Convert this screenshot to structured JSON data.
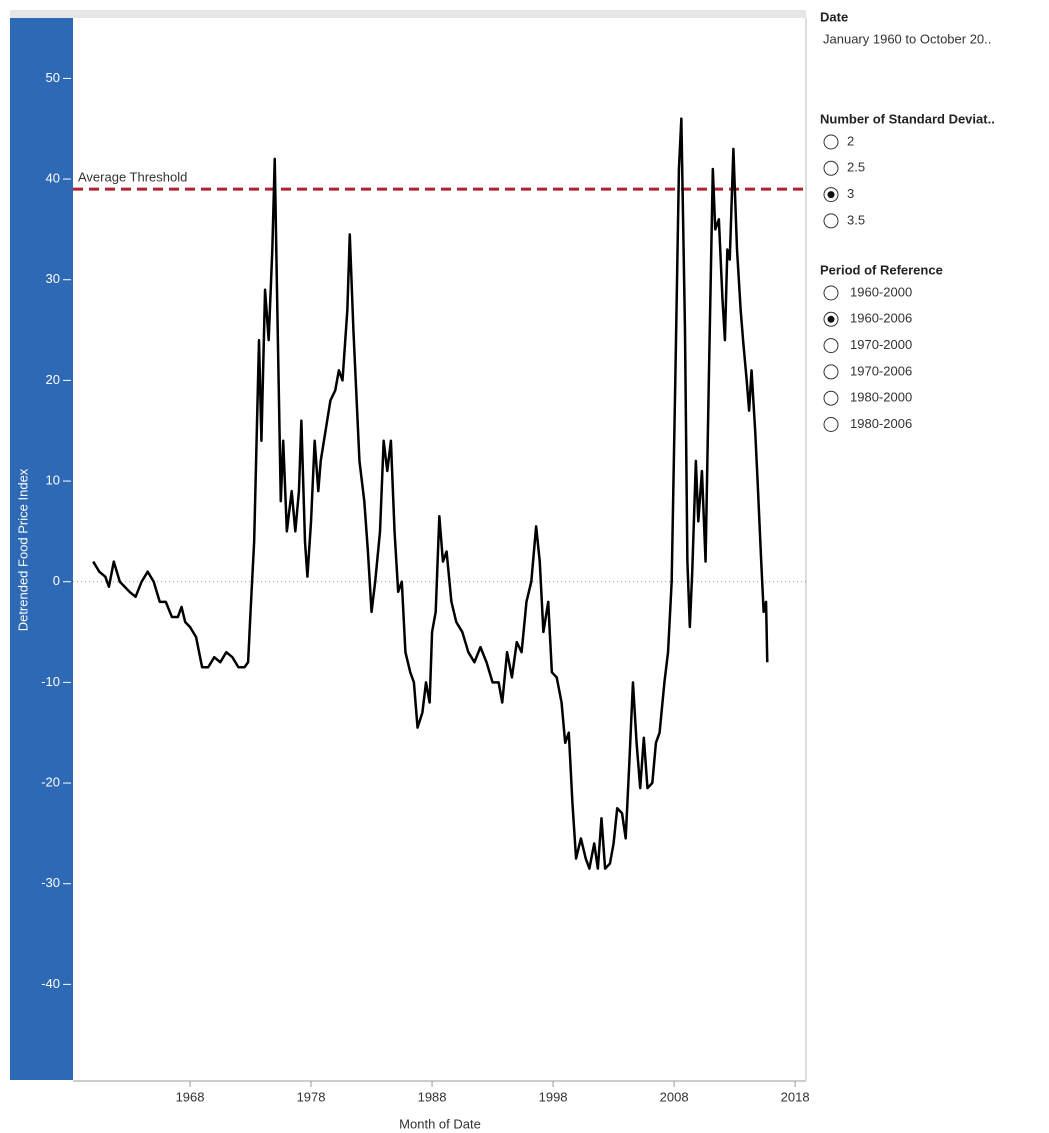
{
  "chart_data": {
    "type": "line",
    "x_label": "Month of Date",
    "y_label": "Detrended Food Price Index",
    "color": "#000000",
    "x": [
      1960.0,
      1960.5,
      1961.0,
      1961.3,
      1961.7,
      1962.2,
      1963.0,
      1963.5,
      1964.0,
      1964.5,
      1965.0,
      1965.5,
      1966.0,
      1966.5,
      1967.0,
      1967.3,
      1967.6,
      1968.0,
      1968.5,
      1969.0,
      1969.5,
      1970.0,
      1970.5,
      1971.0,
      1971.5,
      1972.0,
      1972.5,
      1972.8,
      1973.0,
      1973.3,
      1973.7,
      1973.9,
      1974.2,
      1974.5,
      1974.8,
      1975.0,
      1975.2,
      1975.5,
      1975.7,
      1976.0,
      1976.4,
      1976.7,
      1977.0,
      1977.2,
      1977.5,
      1977.7,
      1978.0,
      1978.3,
      1978.6,
      1978.8,
      1979.2,
      1979.6,
      1980.0,
      1980.3,
      1980.6,
      1981.0,
      1981.2,
      1981.5,
      1982.0,
      1982.4,
      1982.7,
      1983.0,
      1983.3,
      1983.7,
      1984.0,
      1984.3,
      1984.6,
      1984.9,
      1985.2,
      1985.5,
      1985.8,
      1986.2,
      1986.5,
      1986.8,
      1987.2,
      1987.5,
      1987.8,
      1988.0,
      1988.3,
      1988.6,
      1988.9,
      1989.2,
      1989.6,
      1990.0,
      1990.5,
      1991.0,
      1991.5,
      1992.0,
      1992.5,
      1993.0,
      1993.5,
      1993.8,
      1994.2,
      1994.6,
      1995.0,
      1995.4,
      1995.8,
      1996.2,
      1996.6,
      1996.9,
      1997.2,
      1997.6,
      1997.9,
      1998.3,
      1998.7,
      1999.0,
      1999.3,
      1999.6,
      1999.9,
      2000.3,
      2000.7,
      2001.0,
      2001.4,
      2001.7,
      2002.0,
      2002.3,
      2002.7,
      2003.0,
      2003.3,
      2003.7,
      2004.0,
      2004.3,
      2004.6,
      2004.9,
      2005.2,
      2005.5,
      2005.8,
      2006.2,
      2006.5,
      2006.8,
      2007.2,
      2007.5,
      2007.8,
      2008.1,
      2008.4,
      2008.6,
      2008.9,
      2009.1,
      2009.3,
      2009.5,
      2009.8,
      2010.0,
      2010.3,
      2010.6,
      2010.9,
      2011.2,
      2011.4,
      2011.7,
      2012.0,
      2012.2,
      2012.4,
      2012.6,
      2012.9,
      2013.2,
      2013.5,
      2013.7,
      2014.0,
      2014.2,
      2014.4,
      2014.7,
      2014.9,
      2015.2,
      2015.4,
      2015.6,
      2015.7
    ],
    "values": [
      2,
      1,
      0.5,
      -0.5,
      2,
      0,
      -1,
      -1.5,
      0,
      1,
      0,
      -2,
      -2,
      -3.5,
      -3.5,
      -2.5,
      -4,
      -4.5,
      -5.5,
      -8.5,
      -8.5,
      -7.5,
      -8,
      -7,
      -7.5,
      -8.5,
      -8.5,
      -8,
      -3,
      4,
      24,
      14,
      29,
      24,
      33,
      42,
      28,
      8,
      14,
      5,
      9,
      5,
      9,
      16,
      4,
      0.5,
      6,
      14,
      9,
      12,
      15,
      18,
      19,
      21,
      20,
      27,
      34.5,
      25,
      12,
      8,
      3,
      -3,
      0,
      5,
      14,
      11,
      14,
      5,
      -1,
      0,
      -7,
      -9,
      -10,
      -14.5,
      -13,
      -10,
      -12,
      -5,
      -3,
      6.5,
      2,
      3,
      -2,
      -4,
      -5,
      -7,
      -8,
      -6.5,
      -8,
      -10,
      -10,
      -12,
      -7,
      -9.5,
      -6,
      -7,
      -2,
      0,
      5.5,
      2,
      -5,
      -2,
      -9,
      -9.5,
      -12,
      -16,
      -15,
      -22,
      -27.5,
      -25.5,
      -27.5,
      -28.5,
      -26,
      -28.5,
      -23.5,
      -28.5,
      -28,
      -26,
      -22.5,
      -23,
      -25.5,
      -18,
      -10,
      -16,
      -20.5,
      -15.5,
      -20.5,
      -20,
      -16,
      -15,
      -10,
      -7,
      0,
      20,
      41,
      46,
      25,
      2,
      -4.5,
      1,
      12,
      6,
      11,
      2,
      22,
      41,
      35,
      36,
      28,
      24,
      33,
      32,
      43,
      33,
      27,
      24,
      20,
      17,
      21,
      15,
      10,
      2,
      -3,
      -2,
      -8
    ],
    "xlim": [
      1958.33,
      2018.9
    ],
    "ylim": [
      -49.5,
      56
    ],
    "xticks": [
      1968,
      1978,
      1988,
      1998,
      2008,
      2018
    ],
    "yticks": [
      -40,
      -30,
      -20,
      -10,
      0,
      10,
      20,
      30,
      40,
      50
    ],
    "zero_line": true,
    "reference_line": {
      "value": 39,
      "label": "Average Threshold",
      "color": "#b22234"
    }
  },
  "filters": {
    "date": {
      "title": "Date",
      "text": "January 1960 to October 20.."
    },
    "groups": [
      {
        "title": "Number of Standard Deviat..",
        "options": [
          "2",
          "2.5",
          "3",
          "3.5"
        ],
        "selected": 2
      },
      {
        "title": "Period of Reference",
        "options": [
          "1960-2000",
          "1960-2006",
          "1970-2000",
          "1970-2006",
          "1980-2000",
          "1980-2006"
        ],
        "selected": 1
      }
    ]
  }
}
